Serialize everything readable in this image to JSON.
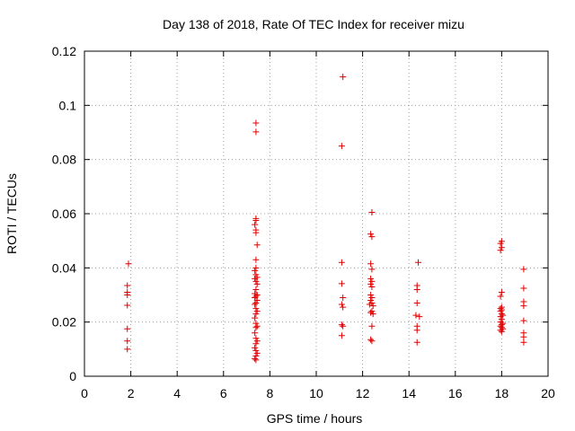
{
  "chart_data": {
    "type": "scatter",
    "title": "Day 138 of 2018, Rate Of TEC Index for receiver mizu",
    "xlabel": "GPS time / hours",
    "ylabel": "ROTI / TECUs",
    "xlim": [
      0,
      20
    ],
    "ylim": [
      0,
      0.12
    ],
    "x_ticks": [
      0,
      2,
      4,
      6,
      8,
      10,
      12,
      14,
      16,
      18,
      20
    ],
    "x_tick_labels": [
      "0",
      "2",
      "4",
      "6",
      "8",
      "10",
      "12",
      "14",
      "16",
      "18",
      "20"
    ],
    "y_ticks": [
      0,
      0.02,
      0.04,
      0.06,
      0.08,
      0.1,
      0.12
    ],
    "y_tick_labels": [
      "0",
      "0.02",
      "0.04",
      "0.06",
      "0.08",
      "0.1",
      "0.12"
    ],
    "grid": true,
    "marker": "+",
    "color": "#e00000",
    "series": [
      {
        "name": "ROTI",
        "points": [
          [
            1.9,
            0.0415
          ],
          [
            1.85,
            0.0335
          ],
          [
            1.85,
            0.031
          ],
          [
            1.85,
            0.03
          ],
          [
            1.85,
            0.0262
          ],
          [
            1.85,
            0.0175
          ],
          [
            1.85,
            0.013
          ],
          [
            1.85,
            0.01
          ],
          [
            7.4,
            0.0935
          ],
          [
            7.4,
            0.0902
          ],
          [
            7.4,
            0.0582
          ],
          [
            7.4,
            0.0575
          ],
          [
            7.35,
            0.056
          ],
          [
            7.4,
            0.054
          ],
          [
            7.4,
            0.053
          ],
          [
            7.45,
            0.0485
          ],
          [
            7.4,
            0.043
          ],
          [
            7.4,
            0.04
          ],
          [
            7.35,
            0.039
          ],
          [
            7.4,
            0.0375
          ],
          [
            7.45,
            0.0365
          ],
          [
            7.35,
            0.036
          ],
          [
            7.4,
            0.035
          ],
          [
            7.45,
            0.034
          ],
          [
            7.4,
            0.032
          ],
          [
            7.35,
            0.0305
          ],
          [
            7.45,
            0.03
          ],
          [
            7.4,
            0.0295
          ],
          [
            7.35,
            0.029
          ],
          [
            7.45,
            0.028
          ],
          [
            7.4,
            0.027
          ],
          [
            7.35,
            0.0265
          ],
          [
            7.4,
            0.025
          ],
          [
            7.45,
            0.024
          ],
          [
            7.4,
            0.023
          ],
          [
            7.35,
            0.0215
          ],
          [
            7.4,
            0.0195
          ],
          [
            7.45,
            0.0185
          ],
          [
            7.4,
            0.018
          ],
          [
            7.35,
            0.016
          ],
          [
            7.4,
            0.014
          ],
          [
            7.45,
            0.013
          ],
          [
            7.4,
            0.012
          ],
          [
            7.35,
            0.0105
          ],
          [
            7.4,
            0.0095
          ],
          [
            7.45,
            0.0085
          ],
          [
            7.4,
            0.0075
          ],
          [
            7.35,
            0.0065
          ],
          [
            7.4,
            0.006
          ],
          [
            11.15,
            0.1105
          ],
          [
            11.1,
            0.085
          ],
          [
            11.1,
            0.042
          ],
          [
            11.1,
            0.0342
          ],
          [
            11.15,
            0.029
          ],
          [
            11.1,
            0.0265
          ],
          [
            11.15,
            0.0255
          ],
          [
            11.1,
            0.019
          ],
          [
            11.15,
            0.0185
          ],
          [
            11.1,
            0.015
          ],
          [
            12.4,
            0.0605
          ],
          [
            12.35,
            0.0525
          ],
          [
            12.4,
            0.0515
          ],
          [
            12.35,
            0.0415
          ],
          [
            12.4,
            0.0395
          ],
          [
            12.35,
            0.036
          ],
          [
            12.4,
            0.035
          ],
          [
            12.35,
            0.034
          ],
          [
            12.4,
            0.033
          ],
          [
            12.35,
            0.03
          ],
          [
            12.4,
            0.029
          ],
          [
            12.35,
            0.028
          ],
          [
            12.4,
            0.027
          ],
          [
            12.3,
            0.0265
          ],
          [
            12.45,
            0.026
          ],
          [
            12.4,
            0.024
          ],
          [
            12.35,
            0.0235
          ],
          [
            12.45,
            0.023
          ],
          [
            12.4,
            0.0185
          ],
          [
            12.35,
            0.0135
          ],
          [
            12.4,
            0.013
          ],
          [
            14.4,
            0.042
          ],
          [
            14.35,
            0.0335
          ],
          [
            14.35,
            0.032
          ],
          [
            14.35,
            0.027
          ],
          [
            14.3,
            0.0225
          ],
          [
            14.45,
            0.022
          ],
          [
            14.35,
            0.0185
          ],
          [
            14.35,
            0.017
          ],
          [
            14.35,
            0.0125
          ],
          [
            18.0,
            0.0498
          ],
          [
            17.95,
            0.049
          ],
          [
            18.0,
            0.0475
          ],
          [
            17.95,
            0.0465
          ],
          [
            18.0,
            0.031
          ],
          [
            17.95,
            0.0295
          ],
          [
            18.0,
            0.0255
          ],
          [
            17.95,
            0.025
          ],
          [
            18.0,
            0.0245
          ],
          [
            17.95,
            0.024
          ],
          [
            18.0,
            0.023
          ],
          [
            18.05,
            0.0225
          ],
          [
            17.95,
            0.022
          ],
          [
            18.0,
            0.021
          ],
          [
            17.95,
            0.02
          ],
          [
            18.05,
            0.0195
          ],
          [
            18.0,
            0.019
          ],
          [
            17.95,
            0.0185
          ],
          [
            18.0,
            0.018
          ],
          [
            18.05,
            0.0175
          ],
          [
            17.95,
            0.017
          ],
          [
            18.0,
            0.0165
          ],
          [
            18.95,
            0.0395
          ],
          [
            18.95,
            0.0325
          ],
          [
            18.95,
            0.0275
          ],
          [
            18.95,
            0.026
          ],
          [
            18.95,
            0.0205
          ],
          [
            18.95,
            0.016
          ],
          [
            18.95,
            0.0145
          ],
          [
            18.95,
            0.0125
          ]
        ]
      }
    ]
  }
}
